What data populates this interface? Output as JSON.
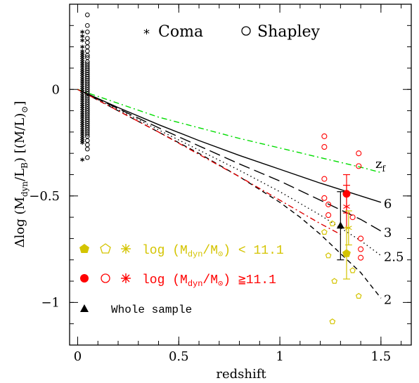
{
  "chart_data": {
    "type": "scatter",
    "xlabel": "redshift",
    "ylabel": "Δlog (M_dyn/L_B) [(M/L)⊙]",
    "xlim": [
      -0.04,
      1.65
    ],
    "ylim": [
      -1.2,
      0.4
    ],
    "xticks": [
      0,
      0.5,
      1,
      1.5
    ],
    "xtick_labels": [
      "0",
      "0.5",
      "1",
      "1.5"
    ],
    "yticks": [
      0,
      -0.5,
      -1
    ],
    "ytick_labels": [
      "0",
      "−0.5",
      "−1"
    ],
    "legend_top": [
      {
        "symbol": "asterisk",
        "label": "Coma"
      },
      {
        "symbol": "circle",
        "label": "Shapley"
      }
    ],
    "legend_bottom": [
      {
        "label": "log (M_dyn/M⊙) < 11.1",
        "color": "#d4c400"
      },
      {
        "label": "log (M_dyn/M⊙) ≧11.1",
        "color": "#ff0000"
      },
      {
        "label": "Whole sample",
        "color": "#000000"
      }
    ],
    "zf_title": "z_f",
    "models": [
      {
        "zf": "6",
        "style": "solid",
        "color": "#000000",
        "points": [
          [
            0,
            0
          ],
          [
            0.2,
            -0.085
          ],
          [
            0.4,
            -0.165
          ],
          [
            0.6,
            -0.24
          ],
          [
            0.8,
            -0.31
          ],
          [
            1.0,
            -0.375
          ],
          [
            1.2,
            -0.44
          ],
          [
            1.4,
            -0.5
          ],
          [
            1.5,
            -0.53
          ]
        ]
      },
      {
        "zf": "3",
        "style": "longdash",
        "color": "#000000",
        "points": [
          [
            0,
            0
          ],
          [
            0.2,
            -0.09
          ],
          [
            0.4,
            -0.18
          ],
          [
            0.6,
            -0.265
          ],
          [
            0.8,
            -0.35
          ],
          [
            1.0,
            -0.43
          ],
          [
            1.2,
            -0.52
          ],
          [
            1.4,
            -0.61
          ],
          [
            1.5,
            -0.665
          ]
        ]
      },
      {
        "zf": "2.5",
        "style": "dotted",
        "color": "#000000",
        "points": [
          [
            0,
            0
          ],
          [
            0.2,
            -0.095
          ],
          [
            0.4,
            -0.19
          ],
          [
            0.6,
            -0.285
          ],
          [
            0.8,
            -0.38
          ],
          [
            1.0,
            -0.48
          ],
          [
            1.2,
            -0.59
          ],
          [
            1.4,
            -0.71
          ],
          [
            1.5,
            -0.78
          ]
        ]
      },
      {
        "zf": "2",
        "style": "shortdash",
        "color": "#000000",
        "points": [
          [
            0,
            0
          ],
          [
            0.2,
            -0.1
          ],
          [
            0.4,
            -0.2
          ],
          [
            0.6,
            -0.3
          ],
          [
            0.8,
            -0.41
          ],
          [
            0.9,
            -0.47
          ],
          [
            1.0,
            -0.53
          ],
          [
            1.1,
            -0.6
          ],
          [
            1.2,
            -0.68
          ],
          [
            1.3,
            -0.77
          ],
          [
            1.4,
            -0.86
          ],
          [
            1.5,
            -0.98
          ]
        ]
      },
      {
        "zf": "",
        "style": "dashdot",
        "color": "#00dd00",
        "points": [
          [
            0,
            0
          ],
          [
            0.2,
            -0.065
          ],
          [
            0.4,
            -0.13
          ],
          [
            0.6,
            -0.18
          ],
          [
            0.8,
            -0.23
          ],
          [
            1.0,
            -0.275
          ],
          [
            1.2,
            -0.32
          ],
          [
            1.4,
            -0.365
          ],
          [
            1.5,
            -0.39
          ]
        ]
      },
      {
        "zf": "",
        "style": "dashdot",
        "color": "#dd0000",
        "points": [
          [
            0,
            0
          ],
          [
            0.2,
            -0.1
          ],
          [
            0.4,
            -0.2
          ],
          [
            0.6,
            -0.305
          ],
          [
            0.8,
            -0.41
          ],
          [
            1.0,
            -0.52
          ],
          [
            1.2,
            -0.63
          ],
          [
            1.3,
            -0.68
          ]
        ]
      }
    ],
    "local_coma": {
      "x": 0.023,
      "values": [
        0.27,
        0.25,
        0.23,
        0.2,
        0.18,
        0.17,
        0.16,
        0.15,
        0.14,
        0.13,
        0.12,
        0.11,
        0.1,
        0.09,
        0.08,
        0.07,
        0.06,
        0.05,
        0.04,
        0.03,
        0.02,
        0.01,
        0.0,
        -0.01,
        -0.02,
        -0.03,
        -0.04,
        -0.05,
        -0.06,
        -0.07,
        -0.08,
        -0.09,
        -0.1,
        -0.11,
        -0.12,
        -0.13,
        -0.14,
        -0.15,
        -0.16,
        -0.17,
        -0.18,
        -0.19,
        -0.2,
        -0.21,
        -0.22,
        -0.23,
        -0.24,
        -0.25,
        -0.33
      ]
    },
    "local_shapley": {
      "x": 0.048,
      "values": [
        0.35,
        0.3,
        0.27,
        0.24,
        0.22,
        0.2,
        0.18,
        0.16,
        0.15,
        0.13,
        0.12,
        0.11,
        0.1,
        0.09,
        0.08,
        0.07,
        0.06,
        0.05,
        0.04,
        0.03,
        0.02,
        0.01,
        0.0,
        -0.01,
        -0.02,
        -0.03,
        -0.04,
        -0.05,
        -0.06,
        -0.07,
        -0.08,
        -0.09,
        -0.1,
        -0.11,
        -0.12,
        -0.13,
        -0.14,
        -0.15,
        -0.16,
        -0.17,
        -0.18,
        -0.19,
        -0.2,
        -0.21,
        -0.22,
        -0.24,
        -0.26,
        -0.28,
        -0.32
      ]
    },
    "high_z_red": [
      [
        1.22,
        -0.22
      ],
      [
        1.22,
        -0.27
      ],
      [
        1.22,
        -0.42
      ],
      [
        1.22,
        -0.51
      ],
      [
        1.24,
        -0.54
      ],
      [
        1.24,
        -0.59
      ],
      [
        1.39,
        -0.3
      ],
      [
        1.39,
        -0.36
      ],
      [
        1.4,
        -0.7
      ],
      [
        1.4,
        -0.75
      ],
      [
        1.4,
        -0.79
      ],
      [
        1.36,
        -0.6
      ]
    ],
    "high_z_yellow": [
      [
        1.22,
        -0.67
      ],
      [
        1.24,
        -0.78
      ],
      [
        1.26,
        -0.63
      ],
      [
        1.27,
        -0.9
      ],
      [
        1.36,
        -0.85
      ],
      [
        1.39,
        -0.97
      ],
      [
        1.26,
        -1.09
      ]
    ],
    "means": [
      {
        "name": "red",
        "x": 1.33,
        "y": -0.49,
        "err": 0.09,
        "color": "#ff0000"
      },
      {
        "name": "red-star",
        "x": 1.33,
        "y": -0.55,
        "err": 0.1,
        "color": "#ff0000"
      },
      {
        "name": "yellow",
        "x": 1.33,
        "y": -0.77,
        "err": 0.12,
        "color": "#d4c400"
      },
      {
        "name": "yellow-star",
        "x": 1.34,
        "y": -0.65,
        "err": 0.08,
        "color": "#d4c400"
      },
      {
        "name": "whole",
        "x": 1.3,
        "y": -0.64,
        "err": 0.16,
        "color": "#000000"
      }
    ]
  }
}
